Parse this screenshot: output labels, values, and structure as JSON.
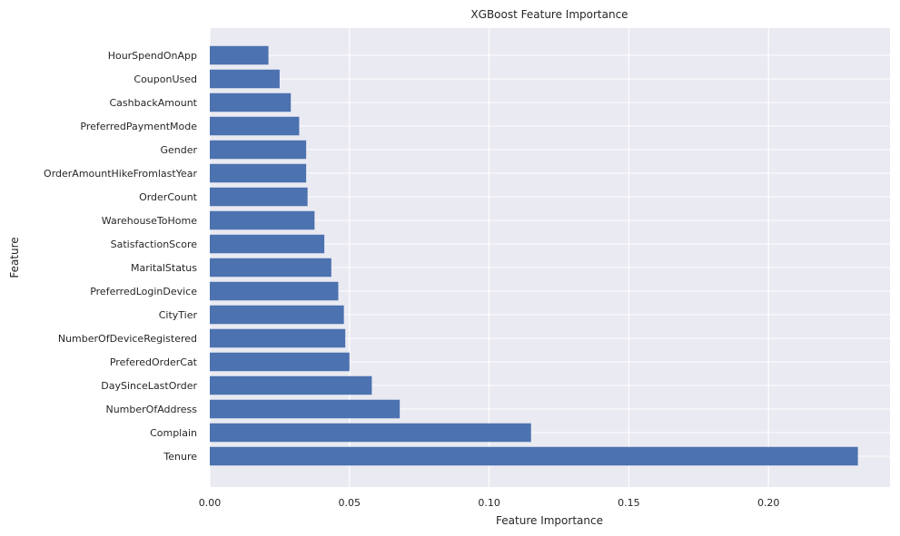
{
  "chart_data": {
    "type": "bar",
    "orientation": "horizontal",
    "title": "XGBoost Feature Importance",
    "xlabel": "Feature Importance",
    "ylabel": "Feature",
    "xlim": [
      0,
      0.2435
    ],
    "x_ticks": [
      0.0,
      0.05,
      0.1,
      0.15,
      0.2
    ],
    "x_tick_labels": [
      "0.00",
      "0.05",
      "0.10",
      "0.15",
      "0.20"
    ],
    "grid": true,
    "colors": {
      "bar": "#4c72b0",
      "background": "#eaeaf2",
      "grid": "#ffffff"
    },
    "categories": [
      "Tenure",
      "Complain",
      "NumberOfAddress",
      "DaySinceLastOrder",
      "PreferedOrderCat",
      "NumberOfDeviceRegistered",
      "CityTier",
      "PreferredLoginDevice",
      "MaritalStatus",
      "SatisfactionScore",
      "WarehouseToHome",
      "OrderCount",
      "OrderAmountHikeFromlastYear",
      "Gender",
      "PreferredPaymentMode",
      "CashbackAmount",
      "CouponUsed",
      "HourSpendOnApp"
    ],
    "values": [
      0.232,
      0.115,
      0.068,
      0.058,
      0.05,
      0.0485,
      0.048,
      0.046,
      0.0435,
      0.041,
      0.0375,
      0.035,
      0.0345,
      0.0345,
      0.032,
      0.029,
      0.025,
      0.021
    ]
  }
}
